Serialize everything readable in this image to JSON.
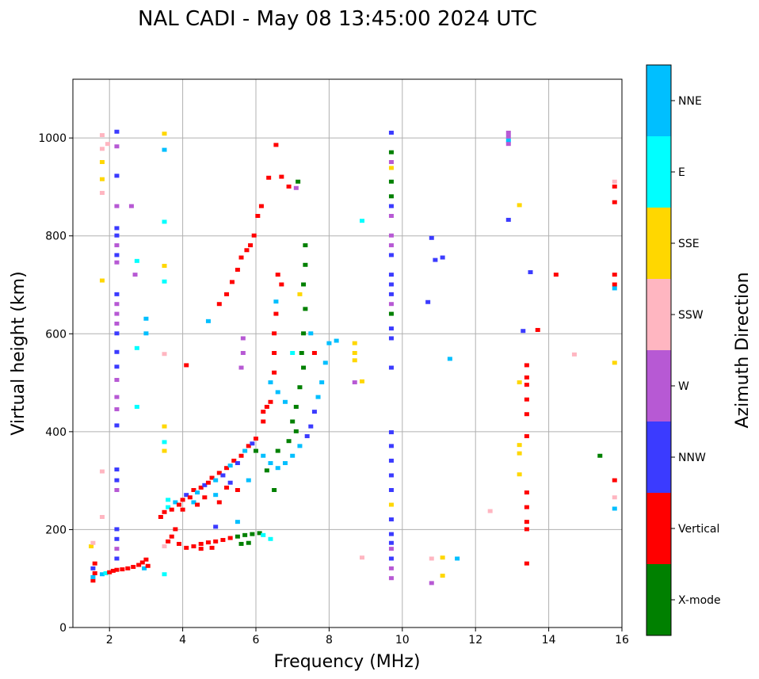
{
  "chart_data": {
    "type": "scatter",
    "title": "NAL CADI - May 08 13:45:00 2024 UTC",
    "xlabel": "Frequency (MHz)",
    "ylabel": "Virtual height (km)",
    "xlim": [
      1,
      16
    ],
    "ylim": [
      0,
      1120
    ],
    "xticks": [
      2,
      4,
      6,
      8,
      10,
      12,
      14,
      16
    ],
    "yticks": [
      0,
      200,
      400,
      600,
      800,
      1000
    ],
    "grid": true,
    "colorbar": {
      "label": "Azimuth Direction",
      "categories": [
        "X-mode",
        "Vertical",
        "NNW",
        "W",
        "SSW",
        "SSE",
        "E",
        "NNE"
      ],
      "colors": [
        "#008000",
        "#ff0000",
        "#3b3bff",
        "#b759d4",
        "#ffb6c1",
        "#ffd700",
        "#00ffff",
        "#00bfff"
      ]
    },
    "points_format": [
      "frequency_MHz",
      "height_km",
      "direction_index"
    ],
    "points": [
      [
        1.55,
        95,
        1
      ],
      [
        1.55,
        102,
        7
      ],
      [
        1.6,
        110,
        1
      ],
      [
        1.55,
        120,
        2
      ],
      [
        1.6,
        130,
        1
      ],
      [
        1.5,
        165,
        5
      ],
      [
        1.55,
        172,
        4
      ],
      [
        1.8,
        108,
        7
      ],
      [
        1.9,
        110,
        6
      ],
      [
        2.0,
        112,
        1
      ],
      [
        2.1,
        115,
        1
      ],
      [
        2.2,
        117,
        1
      ],
      [
        2.35,
        118,
        1
      ],
      [
        2.5,
        120,
        1
      ],
      [
        2.65,
        123,
        1
      ],
      [
        2.8,
        127,
        1
      ],
      [
        2.9,
        132,
        1
      ],
      [
        3.0,
        138,
        1
      ],
      [
        2.95,
        120,
        7
      ],
      [
        3.05,
        125,
        1
      ],
      [
        3.5,
        165,
        4
      ],
      [
        3.6,
        175,
        1
      ],
      [
        3.7,
        185,
        1
      ],
      [
        3.8,
        200,
        1
      ],
      [
        3.9,
        170,
        1
      ],
      [
        4.1,
        162,
        1
      ],
      [
        4.3,
        165,
        1
      ],
      [
        4.5,
        170,
        1
      ],
      [
        4.7,
        173,
        1
      ],
      [
        4.9,
        175,
        1
      ],
      [
        5.1,
        178,
        1
      ],
      [
        5.3,
        182,
        1
      ],
      [
        4.5,
        160,
        1
      ],
      [
        4.8,
        162,
        1
      ],
      [
        5.5,
        185,
        0
      ],
      [
        5.7,
        188,
        0
      ],
      [
        5.9,
        190,
        0
      ],
      [
        6.1,
        192,
        0
      ],
      [
        6.2,
        188,
        6
      ],
      [
        5.6,
        170,
        0
      ],
      [
        5.8,
        172,
        0
      ],
      [
        6.4,
        180,
        6
      ],
      [
        4.9,
        205,
        2
      ],
      [
        5.5,
        215,
        7
      ],
      [
        3.4,
        225,
        1
      ],
      [
        3.5,
        235,
        1
      ],
      [
        3.6,
        245,
        6
      ],
      [
        3.7,
        240,
        1
      ],
      [
        3.8,
        255,
        7
      ],
      [
        3.9,
        250,
        1
      ],
      [
        4.0,
        260,
        1
      ],
      [
        4.1,
        270,
        2
      ],
      [
        4.2,
        265,
        1
      ],
      [
        4.3,
        280,
        1
      ],
      [
        4.4,
        275,
        7
      ],
      [
        4.5,
        285,
        1
      ],
      [
        4.6,
        290,
        2
      ],
      [
        4.7,
        295,
        1
      ],
      [
        4.8,
        305,
        1
      ],
      [
        4.9,
        300,
        7
      ],
      [
        5.0,
        315,
        1
      ],
      [
        5.1,
        310,
        2
      ],
      [
        5.2,
        325,
        1
      ],
      [
        5.3,
        330,
        7
      ],
      [
        5.4,
        340,
        1
      ],
      [
        5.5,
        335,
        2
      ],
      [
        5.6,
        350,
        1
      ],
      [
        5.7,
        360,
        7
      ],
      [
        5.8,
        370,
        1
      ],
      [
        5.9,
        375,
        2
      ],
      [
        6.0,
        385,
        1
      ],
      [
        4.3,
        255,
        7
      ],
      [
        4.6,
        265,
        1
      ],
      [
        4.9,
        270,
        7
      ],
      [
        5.2,
        285,
        1
      ],
      [
        5.5,
        280,
        1
      ],
      [
        5.8,
        300,
        7
      ],
      [
        3.6,
        260,
        6
      ],
      [
        4.0,
        240,
        1
      ],
      [
        4.4,
        250,
        1
      ],
      [
        5.0,
        255,
        1
      ],
      [
        5.3,
        295,
        2
      ],
      [
        6.0,
        360,
        0
      ],
      [
        6.2,
        350,
        7
      ],
      [
        6.4,
        335,
        7
      ],
      [
        6.6,
        325,
        7
      ],
      [
        6.8,
        335,
        7
      ],
      [
        7.0,
        350,
        7
      ],
      [
        7.2,
        370,
        7
      ],
      [
        7.4,
        390,
        2
      ],
      [
        7.5,
        410,
        2
      ],
      [
        7.6,
        440,
        2
      ],
      [
        7.7,
        470,
        7
      ],
      [
        7.8,
        500,
        7
      ],
      [
        7.9,
        540,
        7
      ],
      [
        8.0,
        580,
        7
      ],
      [
        6.3,
        320,
        0
      ],
      [
        6.6,
        360,
        0
      ],
      [
        6.9,
        380,
        0
      ],
      [
        7.0,
        420,
        0
      ],
      [
        7.1,
        450,
        0
      ],
      [
        7.2,
        490,
        0
      ],
      [
        7.3,
        530,
        0
      ],
      [
        7.25,
        560,
        0
      ],
      [
        7.3,
        600,
        0
      ],
      [
        7.35,
        650,
        0
      ],
      [
        7.3,
        700,
        0
      ],
      [
        7.35,
        740,
        0
      ],
      [
        7.35,
        780,
        0
      ],
      [
        6.5,
        280,
        0
      ],
      [
        7.1,
        400,
        0
      ],
      [
        6.8,
        460,
        7
      ],
      [
        7.5,
        600,
        7
      ],
      [
        7.6,
        560,
        1
      ],
      [
        6.2,
        440,
        1
      ],
      [
        6.4,
        460,
        1
      ],
      [
        6.6,
        480,
        7
      ],
      [
        7.0,
        560,
        6
      ],
      [
        7.2,
        680,
        5
      ],
      [
        6.5,
        520,
        1
      ],
      [
        6.5,
        560,
        1
      ],
      [
        6.5,
        600,
        1
      ],
      [
        6.55,
        640,
        1
      ],
      [
        6.55,
        665,
        7
      ],
      [
        6.7,
        700,
        1
      ],
      [
        6.6,
        720,
        1
      ],
      [
        6.4,
        500,
        7
      ],
      [
        6.3,
        450,
        1
      ],
      [
        6.2,
        420,
        1
      ],
      [
        5.6,
        530,
        3
      ],
      [
        5.65,
        560,
        3
      ],
      [
        5.65,
        590,
        3
      ],
      [
        5.2,
        680,
        1
      ],
      [
        5.35,
        705,
        1
      ],
      [
        5.5,
        730,
        1
      ],
      [
        5.6,
        755,
        1
      ],
      [
        5.75,
        770,
        1
      ],
      [
        5.85,
        780,
        1
      ],
      [
        5.95,
        800,
        1
      ],
      [
        6.05,
        840,
        1
      ],
      [
        6.15,
        860,
        1
      ],
      [
        5.0,
        660,
        1
      ],
      [
        4.1,
        535,
        1
      ],
      [
        4.7,
        625,
        7
      ],
      [
        2.2,
        1012,
        2
      ],
      [
        2.2,
        982,
        3
      ],
      [
        2.2,
        922,
        2
      ],
      [
        2.2,
        860,
        3
      ],
      [
        2.2,
        815,
        2
      ],
      [
        2.2,
        800,
        2
      ],
      [
        2.2,
        780,
        3
      ],
      [
        2.2,
        760,
        2
      ],
      [
        2.2,
        745,
        3
      ],
      [
        2.2,
        680,
        2
      ],
      [
        2.2,
        660,
        3
      ],
      [
        2.2,
        640,
        3
      ],
      [
        2.2,
        620,
        3
      ],
      [
        2.2,
        600,
        2
      ],
      [
        2.2,
        562,
        2
      ],
      [
        2.2,
        532,
        2
      ],
      [
        2.2,
        505,
        3
      ],
      [
        2.2,
        470,
        3
      ],
      [
        2.2,
        445,
        3
      ],
      [
        2.2,
        412,
        2
      ],
      [
        2.2,
        322,
        2
      ],
      [
        2.2,
        300,
        2
      ],
      [
        2.2,
        280,
        3
      ],
      [
        2.2,
        200,
        2
      ],
      [
        2.2,
        180,
        2
      ],
      [
        2.2,
        160,
        3
      ],
      [
        2.2,
        140,
        2
      ],
      [
        9.7,
        1010,
        2
      ],
      [
        9.7,
        970,
        0
      ],
      [
        9.7,
        950,
        3
      ],
      [
        9.7,
        938,
        5
      ],
      [
        9.7,
        910,
        0
      ],
      [
        9.7,
        880,
        0
      ],
      [
        9.7,
        860,
        2
      ],
      [
        9.7,
        840,
        3
      ],
      [
        9.7,
        800,
        3
      ],
      [
        9.7,
        780,
        3
      ],
      [
        9.7,
        760,
        2
      ],
      [
        9.7,
        720,
        2
      ],
      [
        9.7,
        700,
        2
      ],
      [
        9.7,
        680,
        2
      ],
      [
        9.7,
        660,
        3
      ],
      [
        9.7,
        640,
        0
      ],
      [
        9.7,
        610,
        2
      ],
      [
        9.7,
        590,
        2
      ],
      [
        9.7,
        530,
        2
      ],
      [
        9.7,
        398,
        2
      ],
      [
        9.7,
        370,
        2
      ],
      [
        9.7,
        340,
        2
      ],
      [
        9.7,
        310,
        2
      ],
      [
        9.7,
        280,
        2
      ],
      [
        9.7,
        250,
        5
      ],
      [
        9.7,
        220,
        2
      ],
      [
        9.7,
        190,
        2
      ],
      [
        9.7,
        172,
        2
      ],
      [
        9.7,
        160,
        3
      ],
      [
        9.7,
        140,
        2
      ],
      [
        9.7,
        120,
        3
      ],
      [
        9.7,
        100,
        3
      ],
      [
        12.9,
        1010,
        3
      ],
      [
        12.9,
        1002,
        3
      ],
      [
        12.9,
        994,
        7
      ],
      [
        12.9,
        987,
        3
      ],
      [
        12.9,
        832,
        2
      ],
      [
        13.3,
        605,
        2
      ],
      [
        13.7,
        607,
        1
      ],
      [
        14.2,
        720,
        1
      ],
      [
        13.5,
        725,
        2
      ],
      [
        14.7,
        557,
        4
      ],
      [
        12.4,
        237,
        4
      ],
      [
        11.5,
        140,
        7
      ],
      [
        11.1,
        142,
        5
      ],
      [
        11.1,
        105,
        5
      ],
      [
        10.8,
        90,
        3
      ],
      [
        10.8,
        140,
        4
      ],
      [
        10.8,
        795,
        2
      ],
      [
        10.9,
        750,
        2
      ],
      [
        10.7,
        664,
        2
      ],
      [
        11.1,
        755,
        2
      ],
      [
        11.3,
        548,
        7
      ],
      [
        13.4,
        535,
        1
      ],
      [
        13.4,
        510,
        1
      ],
      [
        13.4,
        495,
        1
      ],
      [
        13.4,
        465,
        1
      ],
      [
        13.4,
        435,
        1
      ],
      [
        13.4,
        390,
        1
      ],
      [
        13.4,
        275,
        1
      ],
      [
        13.4,
        245,
        1
      ],
      [
        13.4,
        215,
        1
      ],
      [
        13.4,
        200,
        1
      ],
      [
        13.4,
        130,
        1
      ],
      [
        13.2,
        862,
        5
      ],
      [
        13.2,
        500,
        5
      ],
      [
        13.2,
        372,
        5
      ],
      [
        13.2,
        355,
        5
      ],
      [
        13.2,
        312,
        5
      ],
      [
        15.8,
        910,
        4
      ],
      [
        15.8,
        900,
        1
      ],
      [
        15.8,
        868,
        1
      ],
      [
        15.8,
        720,
        1
      ],
      [
        15.8,
        700,
        1
      ],
      [
        15.8,
        692,
        7
      ],
      [
        15.8,
        540,
        5
      ],
      [
        15.8,
        300,
        1
      ],
      [
        15.8,
        265,
        4
      ],
      [
        15.8,
        242,
        7
      ],
      [
        15.4,
        350,
        0
      ],
      [
        8.7,
        580,
        5
      ],
      [
        8.7,
        560,
        5
      ],
      [
        8.7,
        545,
        5
      ],
      [
        8.7,
        500,
        3
      ],
      [
        8.9,
        502,
        5
      ],
      [
        8.9,
        142,
        4
      ],
      [
        8.9,
        830,
        6
      ],
      [
        8.2,
        585,
        7
      ],
      [
        3.5,
        1008,
        5
      ],
      [
        3.5,
        975,
        7
      ],
      [
        3.5,
        828,
        6
      ],
      [
        3.5,
        738,
        5
      ],
      [
        3.5,
        706,
        6
      ],
      [
        3.5,
        558,
        4
      ],
      [
        3.5,
        410,
        5
      ],
      [
        3.5,
        378,
        6
      ],
      [
        3.5,
        360,
        5
      ],
      [
        3.5,
        108,
        6
      ],
      [
        3.0,
        630,
        7
      ],
      [
        3.0,
        600,
        7
      ],
      [
        2.75,
        748,
        6
      ],
      [
        2.7,
        720,
        3
      ],
      [
        2.75,
        570,
        6
      ],
      [
        2.75,
        450,
        6
      ],
      [
        2.6,
        860,
        3
      ],
      [
        1.8,
        1005,
        4
      ],
      [
        1.8,
        977,
        4
      ],
      [
        1.8,
        950,
        5
      ],
      [
        1.8,
        915,
        5
      ],
      [
        1.8,
        887,
        4
      ],
      [
        1.8,
        708,
        5
      ],
      [
        1.95,
        987,
        4
      ],
      [
        1.8,
        318,
        4
      ],
      [
        1.8,
        225,
        4
      ],
      [
        6.55,
        985,
        1
      ],
      [
        6.35,
        918,
        1
      ],
      [
        6.7,
        920,
        1
      ],
      [
        6.9,
        900,
        1
      ],
      [
        7.1,
        897,
        3
      ],
      [
        7.15,
        910,
        0
      ]
    ]
  }
}
